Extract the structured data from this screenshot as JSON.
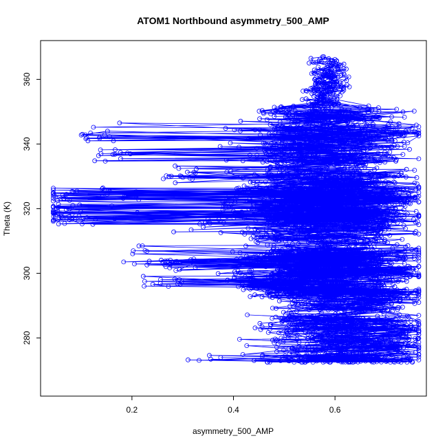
{
  "chart_data": {
    "type": "scatter",
    "title": "ATOM1 Northbound asymmetry_500_AMP",
    "xlabel": "asymmetry_500_AMP",
    "ylabel": "Theta (K)",
    "xlim": [
      0.02,
      0.78
    ],
    "ylim": [
      262,
      372
    ],
    "x_ticks": [
      {
        "value": 0.2,
        "label": "0.2"
      },
      {
        "value": 0.4,
        "label": "0.4"
      },
      {
        "value": 0.6,
        "label": "0.6"
      }
    ],
    "y_ticks": [
      {
        "value": 280,
        "label": "280"
      },
      {
        "value": 300,
        "label": "300"
      },
      {
        "value": 320,
        "label": "320"
      },
      {
        "value": 340,
        "label": "340"
      },
      {
        "value": 360,
        "label": "360"
      }
    ],
    "series_color": "#0000ff",
    "marker": "open-circle",
    "connected": true,
    "point_count": 4000,
    "series": [
      {
        "x": [
          0.34,
          0.52,
          0.6,
          0.66,
          0.7,
          0.75,
          0.72,
          0.62,
          0.54,
          0.48,
          0.58,
          0.66,
          0.72,
          0.68,
          0.56,
          0.5,
          0.45,
          0.26,
          0.4,
          0.58,
          0.7,
          0.74,
          0.64,
          0.3,
          0.52,
          0.62,
          0.76,
          0.6,
          0.22,
          0.46,
          0.6,
          0.7,
          0.32,
          0.55,
          0.6,
          0.68,
          0.5,
          0.09,
          0.4,
          0.6,
          0.72,
          0.66,
          0.055,
          0.045,
          0.05,
          0.06,
          0.18,
          0.46,
          0.6,
          0.75,
          0.64,
          0.3,
          0.5,
          0.62,
          0.16,
          0.5,
          0.68,
          0.74,
          0.55,
          0.14,
          0.5,
          0.65,
          0.58,
          0.57,
          0.58,
          0.59,
          0.58
        ],
        "y": [
          273,
          274,
          273,
          277,
          280,
          276,
          284,
          286,
          283,
          280,
          288,
          290,
          292,
          294,
          295,
          294,
          296,
          297,
          298,
          300,
          301,
          300,
          302,
          303,
          304,
          306,
          305,
          308,
          302,
          309,
          311,
          313,
          315,
          316,
          317,
          318,
          319,
          316,
          320,
          322,
          323,
          324,
          325,
          322,
          319,
          317,
          323,
          326,
          328,
          325,
          331,
          329,
          333,
          335,
          336,
          338,
          340,
          345,
          342,
          341,
          346,
          348,
          350,
          353,
          357,
          361,
          366
        ]
      }
    ]
  }
}
